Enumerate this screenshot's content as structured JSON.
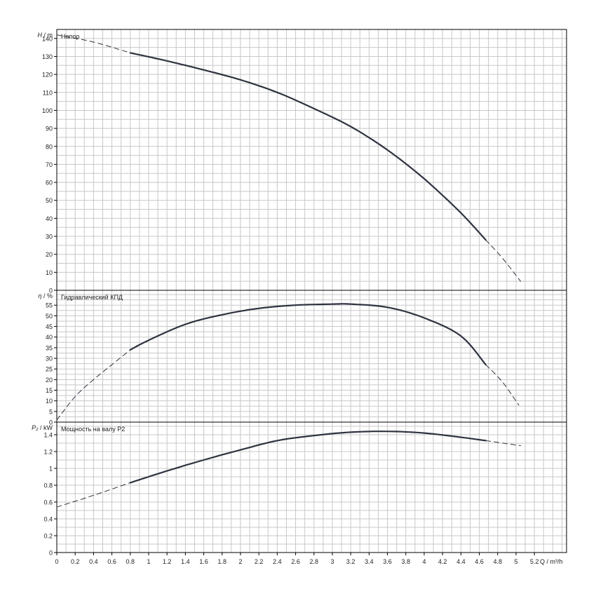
{
  "chart_data": [
    {
      "type": "line",
      "panel_label": "Напор",
      "ylabel": "H / m",
      "ylabel_symbol": "H",
      "ylabel_unit": "/ m",
      "ylim": [
        0,
        145
      ],
      "yticks": [
        0,
        10,
        20,
        30,
        40,
        50,
        60,
        70,
        80,
        90,
        100,
        110,
        120,
        130,
        140
      ],
      "ytick_labels": [
        "0",
        "10",
        "20",
        "30",
        "40",
        "50",
        "60",
        "70",
        "80",
        "90",
        "100",
        "110",
        "120",
        "130",
        "140"
      ],
      "dashed_before": [
        [
          0,
          142
        ],
        [
          0.4,
          138
        ],
        [
          0.8,
          132
        ]
      ],
      "solid": [
        [
          0.8,
          132
        ],
        [
          1.2,
          127.5
        ],
        [
          1.6,
          122.5
        ],
        [
          2.0,
          117
        ],
        [
          2.4,
          110
        ],
        [
          2.8,
          101
        ],
        [
          3.2,
          91
        ],
        [
          3.6,
          78
        ],
        [
          4.0,
          62
        ],
        [
          4.4,
          43
        ],
        [
          4.67,
          28
        ]
      ],
      "dashed_after": [
        [
          4.67,
          28
        ],
        [
          4.85,
          18
        ],
        [
          5.05,
          5
        ]
      ]
    },
    {
      "type": "line",
      "panel_label": "Гидравлический КПД",
      "ylabel": "η / %",
      "ylabel_symbol": "η",
      "ylabel_unit": "/ %",
      "ylim": [
        0,
        62
      ],
      "yticks": [
        0,
        5,
        10,
        15,
        20,
        25,
        30,
        35,
        40,
        45,
        50,
        55
      ],
      "ytick_labels": [
        "0",
        "5",
        "10",
        "15",
        "20",
        "25",
        "30",
        "35",
        "40",
        "45",
        "50",
        "55"
      ],
      "dashed_before": [
        [
          0,
          1
        ],
        [
          0.2,
          12
        ],
        [
          0.4,
          20
        ],
        [
          0.6,
          27
        ],
        [
          0.8,
          34
        ]
      ],
      "solid": [
        [
          0.8,
          34
        ],
        [
          1.0,
          38.5
        ],
        [
          1.4,
          46
        ],
        [
          1.8,
          50.5
        ],
        [
          2.2,
          53.5
        ],
        [
          2.6,
          55
        ],
        [
          3.0,
          55.5
        ],
        [
          3.2,
          55.5
        ],
        [
          3.6,
          54
        ],
        [
          4.0,
          49
        ],
        [
          4.4,
          40.5
        ],
        [
          4.67,
          27
        ]
      ],
      "dashed_after": [
        [
          4.67,
          27
        ],
        [
          4.85,
          19
        ],
        [
          5.03,
          8
        ]
      ]
    },
    {
      "type": "line",
      "panel_label": "Мощность на валу P2",
      "ylabel": "P₂ / kW",
      "ylabel_symbol": "P₂",
      "ylabel_unit": "/ kW",
      "ylim": [
        0,
        1.55
      ],
      "yticks": [
        0,
        0.2,
        0.4,
        0.6,
        0.8,
        1.0,
        1.2,
        1.4
      ],
      "ytick_labels": [
        "0",
        "0.2",
        "0.4",
        "0.6",
        "0.8",
        "1",
        "1.2",
        "1.4"
      ],
      "dashed_before": [
        [
          0,
          0.54
        ],
        [
          0.4,
          0.68
        ],
        [
          0.8,
          0.83
        ]
      ],
      "solid": [
        [
          0.8,
          0.83
        ],
        [
          1.2,
          0.97
        ],
        [
          1.6,
          1.1
        ],
        [
          2.0,
          1.22
        ],
        [
          2.4,
          1.33
        ],
        [
          2.8,
          1.39
        ],
        [
          3.2,
          1.43
        ],
        [
          3.6,
          1.44
        ],
        [
          4.0,
          1.42
        ],
        [
          4.4,
          1.37
        ],
        [
          4.67,
          1.33
        ]
      ],
      "dashed_after": [
        [
          4.67,
          1.33
        ],
        [
          5.05,
          1.27
        ]
      ]
    }
  ],
  "x_axis": {
    "label": "Q / m³/h",
    "xlim": [
      0,
      5.55
    ],
    "xticks": [
      0,
      0.2,
      0.4,
      0.6,
      0.8,
      1,
      1.2,
      1.4,
      1.6,
      1.8,
      2,
      2.2,
      2.4,
      2.6,
      2.8,
      3,
      3.2,
      3.4,
      3.6,
      3.8,
      4,
      4.2,
      4.4,
      4.6,
      4.8,
      5,
      5.2
    ],
    "xtick_labels": [
      "0",
      "0.2",
      "0.4",
      "0.6",
      "0.8",
      "1",
      "1.2",
      "1.4",
      "1.6",
      "1.8",
      "2",
      "2.2",
      "2.4",
      "2.6",
      "2.8",
      "3",
      "3.2",
      "3.4",
      "3.6",
      "3.8",
      "4",
      "4.2",
      "4.4",
      "4.6",
      "4.8",
      "5",
      "5.2"
    ]
  },
  "colors": {
    "grid": "#c8c8c8",
    "frame": "#000000",
    "curve": "#2e3340"
  }
}
